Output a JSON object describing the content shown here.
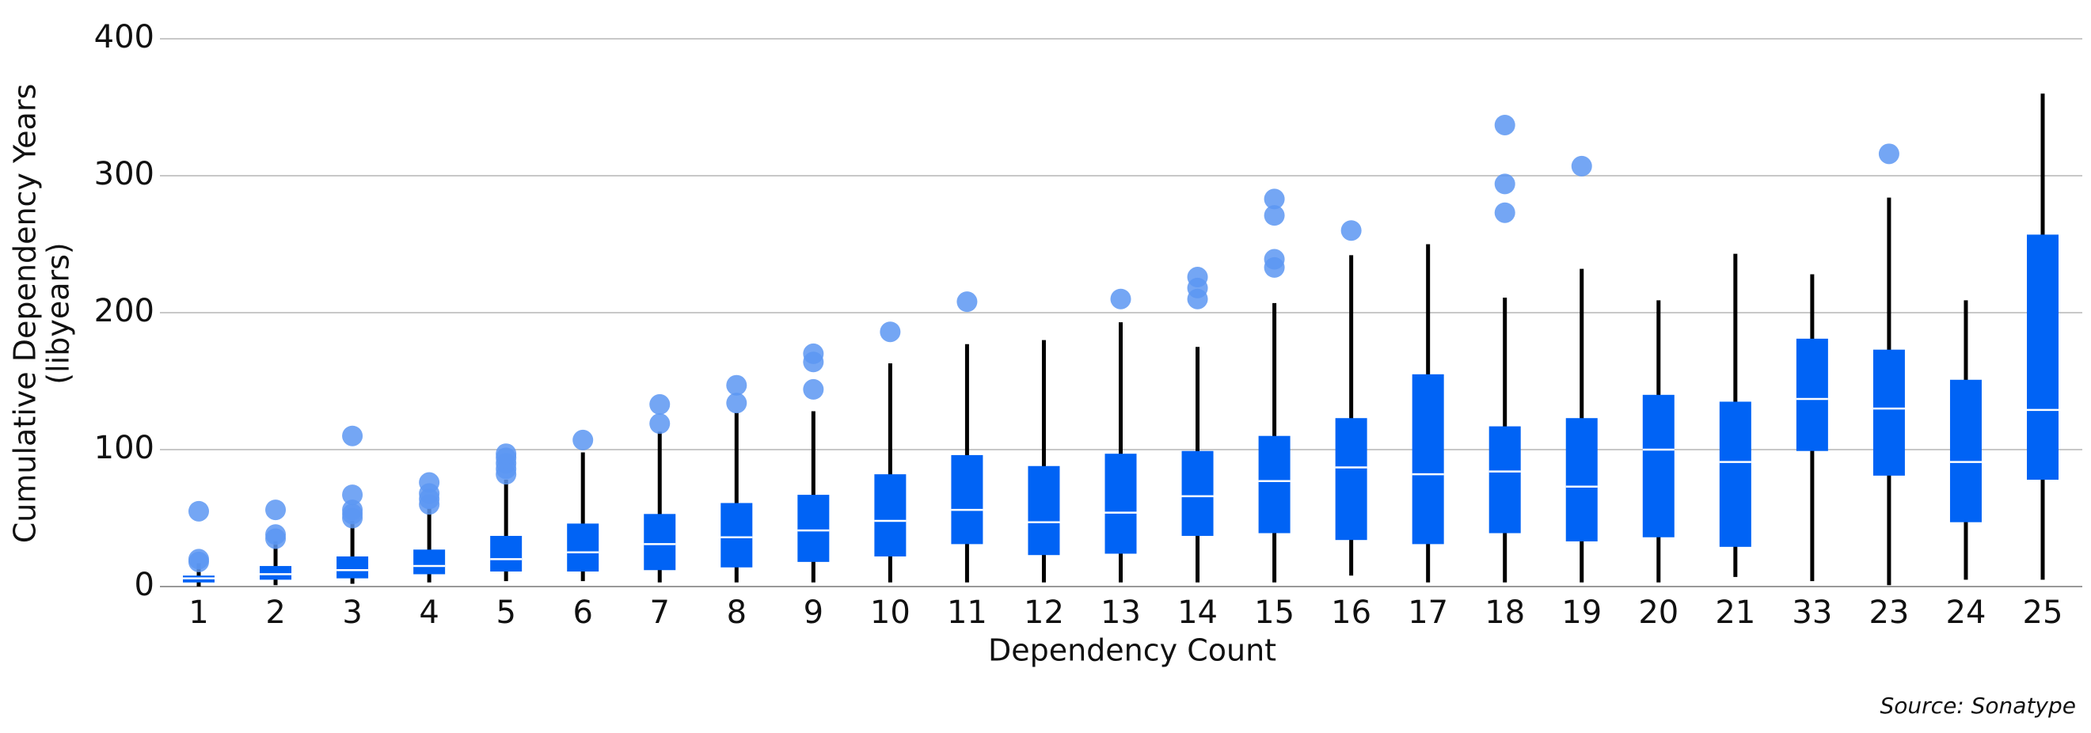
{
  "chart_data": {
    "type": "box",
    "x_label": "Dependency Count",
    "y_label": [
      "Cumulative Dependency Years",
      "(libyears)"
    ],
    "source": "Source: Sonatype",
    "ylim": [
      0,
      400
    ],
    "yticks": [
      0,
      100,
      200,
      300,
      400
    ],
    "grid": true,
    "box_color": "#0063f5",
    "median_color": "#ffffff",
    "whisker_color": "#000000",
    "outlier_color": "#5c97f2",
    "categories": [
      "1",
      "2",
      "3",
      "4",
      "5",
      "6",
      "7",
      "8",
      "9",
      "10",
      "11",
      "12",
      "13",
      "14",
      "15",
      "16",
      "17",
      "18",
      "19",
      "20",
      "21",
      "33",
      "23",
      "24",
      "25"
    ],
    "boxes": [
      {
        "whisker_low": 0,
        "q1": 3,
        "median": 6,
        "q3": 8,
        "whisker_high": 17,
        "outliers": [
          18,
          20,
          55
        ]
      },
      {
        "whisker_low": 1,
        "q1": 5,
        "median": 9,
        "q3": 15,
        "whisker_high": 33,
        "outliers": [
          35,
          38,
          56
        ]
      },
      {
        "whisker_low": 2,
        "q1": 6,
        "median": 12,
        "q3": 22,
        "whisker_high": 48,
        "outliers": [
          50,
          53,
          56,
          67,
          110
        ]
      },
      {
        "whisker_low": 3,
        "q1": 9,
        "median": 15,
        "q3": 27,
        "whisker_high": 57,
        "outliers": [
          60,
          64,
          68,
          76
        ]
      },
      {
        "whisker_low": 4,
        "q1": 11,
        "median": 20,
        "q3": 37,
        "whisker_high": 78,
        "outliers": [
          82,
          86,
          90,
          94,
          97
        ]
      },
      {
        "whisker_low": 4,
        "q1": 11,
        "median": 25,
        "q3": 46,
        "whisker_high": 98,
        "outliers": [
          107
        ]
      },
      {
        "whisker_low": 3,
        "q1": 12,
        "median": 31,
        "q3": 53,
        "whisker_high": 113,
        "outliers": [
          119,
          133
        ]
      },
      {
        "whisker_low": 3,
        "q1": 14,
        "median": 36,
        "q3": 61,
        "whisker_high": 127,
        "outliers": [
          134,
          147
        ]
      },
      {
        "whisker_low": 3,
        "q1": 18,
        "median": 41,
        "q3": 67,
        "whisker_high": 128,
        "outliers": [
          144,
          164,
          170
        ]
      },
      {
        "whisker_low": 3,
        "q1": 22,
        "median": 48,
        "q3": 82,
        "whisker_high": 163,
        "outliers": [
          186
        ]
      },
      {
        "whisker_low": 3,
        "q1": 31,
        "median": 56,
        "q3": 96,
        "whisker_high": 177,
        "outliers": [
          208
        ]
      },
      {
        "whisker_low": 3,
        "q1": 23,
        "median": 47,
        "q3": 88,
        "whisker_high": 180,
        "outliers": []
      },
      {
        "whisker_low": 3,
        "q1": 24,
        "median": 54,
        "q3": 97,
        "whisker_high": 193,
        "outliers": [
          210
        ]
      },
      {
        "whisker_low": 3,
        "q1": 37,
        "median": 66,
        "q3": 99,
        "whisker_high": 175,
        "outliers": [
          210,
          218,
          226
        ]
      },
      {
        "whisker_low": 3,
        "q1": 39,
        "median": 77,
        "q3": 110,
        "whisker_high": 207,
        "outliers": [
          233,
          239,
          271,
          283
        ]
      },
      {
        "whisker_low": 8,
        "q1": 34,
        "median": 87,
        "q3": 123,
        "whisker_high": 242,
        "outliers": [
          260
        ]
      },
      {
        "whisker_low": 3,
        "q1": 31,
        "median": 82,
        "q3": 155,
        "whisker_high": 250,
        "outliers": []
      },
      {
        "whisker_low": 3,
        "q1": 39,
        "median": 84,
        "q3": 117,
        "whisker_high": 211,
        "outliers": [
          273,
          294,
          337
        ]
      },
      {
        "whisker_low": 3,
        "q1": 33,
        "median": 73,
        "q3": 123,
        "whisker_high": 232,
        "outliers": [
          307
        ]
      },
      {
        "whisker_low": 3,
        "q1": 36,
        "median": 100,
        "q3": 140,
        "whisker_high": 209,
        "outliers": []
      },
      {
        "whisker_low": 7,
        "q1": 29,
        "median": 91,
        "q3": 135,
        "whisker_high": 243,
        "outliers": []
      },
      {
        "whisker_low": 4,
        "q1": 99,
        "median": 137,
        "q3": 181,
        "whisker_high": 228,
        "outliers": []
      },
      {
        "whisker_low": 1,
        "q1": 81,
        "median": 130,
        "q3": 173,
        "whisker_high": 284,
        "outliers": [
          316
        ]
      },
      {
        "whisker_low": 5,
        "q1": 47,
        "median": 91,
        "q3": 151,
        "whisker_high": 209,
        "outliers": []
      },
      {
        "whisker_low": 5,
        "q1": 78,
        "median": 129,
        "q3": 257,
        "whisker_high": 360,
        "outliers": []
      }
    ]
  }
}
